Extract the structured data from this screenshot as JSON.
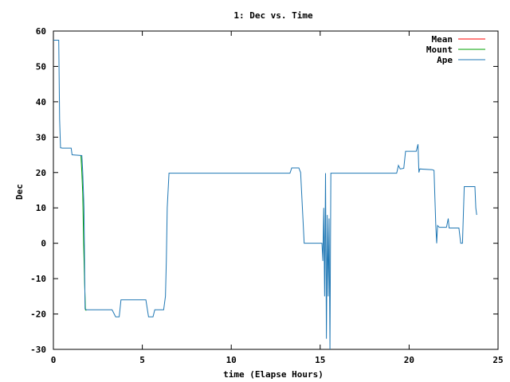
{
  "chart_data": {
    "type": "line",
    "title": "1: Dec vs. Time",
    "xlabel": "time (Elapse Hours)",
    "ylabel": "Dec",
    "xlim": [
      0,
      25
    ],
    "ylim": [
      -30,
      60
    ],
    "xticks": [
      0,
      5,
      10,
      15,
      20,
      25
    ],
    "yticks": [
      -30,
      -20,
      -10,
      0,
      10,
      20,
      30,
      40,
      50,
      60
    ],
    "grid": false,
    "legend_position": "top-right",
    "series": [
      {
        "name": "Mean",
        "color": "#ff0000",
        "points": []
      },
      {
        "name": "Mount",
        "color": "#00a000",
        "points": [
          [
            1.55,
            24.8
          ],
          [
            1.6,
            20
          ],
          [
            1.65,
            14
          ],
          [
            1.7,
            0
          ],
          [
            1.75,
            -10
          ],
          [
            1.8,
            -18.8
          ],
          [
            1.85,
            -19
          ]
        ]
      },
      {
        "name": "Ape",
        "color": "#1f77b4",
        "points": [
          [
            0,
            57.4
          ],
          [
            0.3,
            57.4
          ],
          [
            0.35,
            35
          ],
          [
            0.4,
            27
          ],
          [
            0.5,
            26.9
          ],
          [
            1.0,
            26.9
          ],
          [
            1.05,
            25
          ],
          [
            1.6,
            24.8
          ],
          [
            1.65,
            20
          ],
          [
            1.72,
            10
          ],
          [
            1.78,
            -18.5
          ],
          [
            1.85,
            -18.8
          ],
          [
            3.3,
            -18.8
          ],
          [
            3.5,
            -20.8
          ],
          [
            3.7,
            -20.8
          ],
          [
            3.8,
            -16
          ],
          [
            5.2,
            -16
          ],
          [
            5.35,
            -20.8
          ],
          [
            5.6,
            -20.8
          ],
          [
            5.7,
            -18.8
          ],
          [
            6.2,
            -18.8
          ],
          [
            6.3,
            -15
          ],
          [
            6.35,
            -5
          ],
          [
            6.4,
            10
          ],
          [
            6.5,
            19.8
          ],
          [
            13.3,
            19.8
          ],
          [
            13.4,
            21.3
          ],
          [
            13.8,
            21.3
          ],
          [
            13.9,
            20
          ],
          [
            14.0,
            10
          ],
          [
            14.1,
            0
          ],
          [
            15.1,
            0
          ],
          [
            15.15,
            -5
          ],
          [
            15.2,
            10
          ],
          [
            15.25,
            -15
          ],
          [
            15.3,
            19.8
          ],
          [
            15.35,
            -27
          ],
          [
            15.4,
            8
          ],
          [
            15.45,
            -15
          ],
          [
            15.5,
            7
          ],
          [
            15.55,
            -30
          ],
          [
            15.6,
            19.8
          ],
          [
            19.3,
            19.8
          ],
          [
            19.4,
            22
          ],
          [
            19.5,
            21
          ],
          [
            19.7,
            21.2
          ],
          [
            19.8,
            26
          ],
          [
            20.4,
            26
          ],
          [
            20.5,
            28
          ],
          [
            20.55,
            20
          ],
          [
            20.6,
            21
          ],
          [
            21.3,
            20.8
          ],
          [
            21.4,
            20.6
          ],
          [
            21.5,
            5
          ],
          [
            21.55,
            0
          ],
          [
            21.6,
            5
          ],
          [
            21.7,
            4.5
          ],
          [
            22.1,
            4.5
          ],
          [
            22.2,
            7
          ],
          [
            22.25,
            4.3
          ],
          [
            22.8,
            4.3
          ],
          [
            22.9,
            0
          ],
          [
            23.0,
            0
          ],
          [
            23.1,
            16
          ],
          [
            23.7,
            16
          ],
          [
            23.75,
            10
          ],
          [
            23.8,
            8
          ]
        ]
      }
    ]
  }
}
